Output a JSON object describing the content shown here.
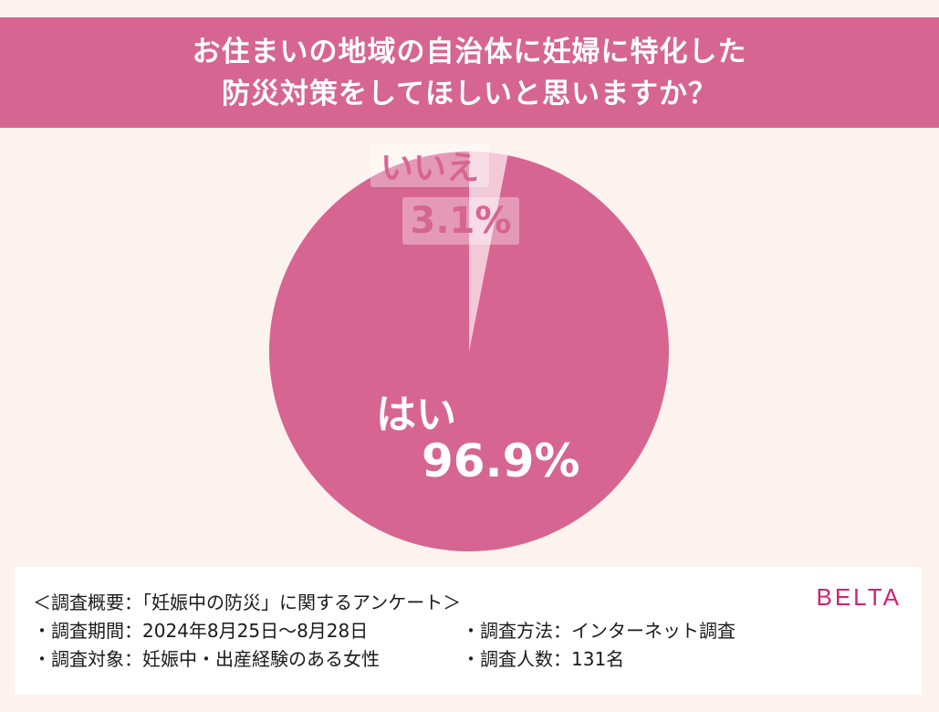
{
  "header": {
    "line1": "お住まいの地域の自治体に妊婦に特化した",
    "line2": "防災対策をしてほしいと思いますか？"
  },
  "chart_data": {
    "type": "pie",
    "title": "お住まいの地域の自治体に妊婦に特化した防災対策をしてほしいと思いますか？",
    "slices": [
      {
        "label": "はい",
        "value": 96.9,
        "value_label": "96.9%",
        "color": "#d66591"
      },
      {
        "label": "いいえ",
        "value": 3.1,
        "value_label": "3.1%",
        "color": "#f3c8d7"
      }
    ]
  },
  "info": {
    "title": "＜調査概要：「妊娠中の防災」に関するアンケート＞",
    "period": "・調査期間：2024年8月25日～8月28日",
    "method": "・調査方法：インターネット調査",
    "target": "・調査対象：妊娠中・出産経験のある女性",
    "count": "・調査人数：131名"
  },
  "brand": "BELTA",
  "colors": {
    "accent": "#d66591",
    "background": "#fdf3ee",
    "brand": "#d6206f"
  }
}
